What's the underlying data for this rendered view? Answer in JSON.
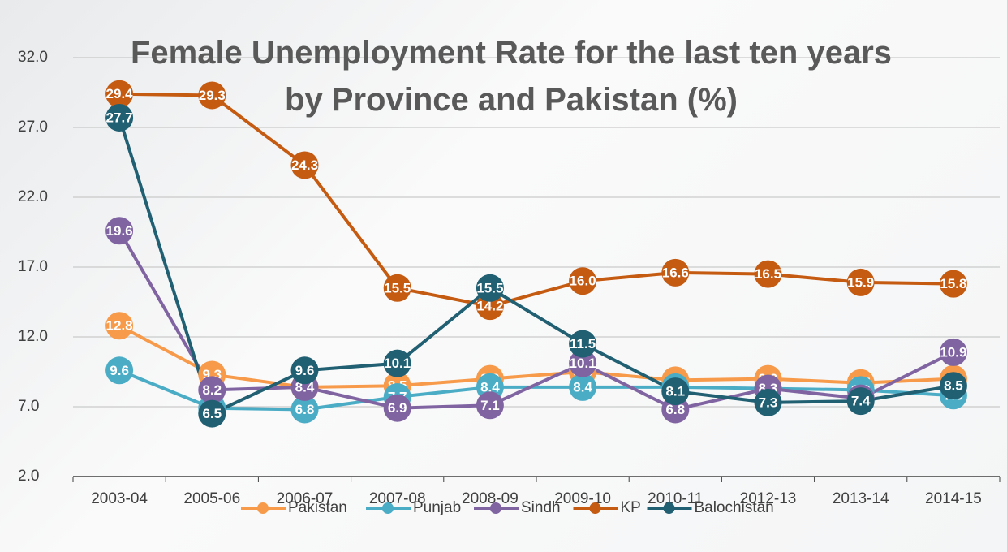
{
  "chart_data": {
    "type": "line",
    "title": "Female Unemployment Rate for the last ten years by Province and Pakistan (%)",
    "categories": [
      "2003-04",
      "2005-06",
      "2006-07",
      "2007-08",
      "2008-09",
      "2009-10",
      "2010-11",
      "2012-13",
      "2013-14",
      "2014-15"
    ],
    "series": [
      {
        "name": "Pakistan",
        "color": "#f79a4a",
        "values": [
          12.8,
          9.3,
          8.4,
          8.5,
          9.0,
          9.5,
          8.9,
          9.0,
          8.7,
          9.0
        ],
        "value_labels": [
          "12.8",
          "9.3",
          "8.4",
          "8.5",
          "9.0",
          "9.5",
          "8.9",
          "9.0",
          "8.7",
          "9.0"
        ]
      },
      {
        "name": "Punjab",
        "color": "#4bacc6",
        "values": [
          9.6,
          6.9,
          6.8,
          7.7,
          8.4,
          8.4,
          8.4,
          8.3,
          8.2,
          7.8
        ],
        "value_labels": [
          "9.6",
          "6.9",
          "6.8",
          "7.7",
          "8.4",
          "8.4",
          "8.4",
          "8.3",
          "8.2",
          "7.8"
        ]
      },
      {
        "name": "Sindh",
        "color": "#8064a2",
        "values": [
          19.6,
          8.2,
          8.4,
          6.9,
          7.1,
          10.1,
          6.8,
          8.3,
          7.6,
          10.9
        ],
        "value_labels": [
          "19.6",
          "8.2",
          "8.4",
          "6.9",
          "7.1",
          "10.1",
          "6.8",
          "8.3",
          "7.6",
          "10.9"
        ]
      },
      {
        "name": "KP",
        "color": "#c55a11",
        "values": [
          29.4,
          29.3,
          24.3,
          15.5,
          14.2,
          16.0,
          16.6,
          16.5,
          15.9,
          15.8
        ],
        "value_labels": [
          "29.4",
          "29.3",
          "24.3",
          "15.5",
          "14.2",
          "16.0",
          "16.6",
          "16.5",
          "15.9",
          "15.8"
        ]
      },
      {
        "name": "Balochistan",
        "color": "#215f73",
        "values": [
          27.7,
          6.5,
          9.6,
          10.1,
          15.5,
          11.5,
          8.1,
          7.3,
          7.4,
          8.5
        ],
        "value_labels": [
          "27.7",
          "6.5",
          "9.6",
          "10.1",
          "15.5",
          "11.5",
          "8.1",
          "7.3",
          "7.4",
          "8.5"
        ]
      }
    ],
    "ylim": [
      2,
      32
    ],
    "yticks": [
      {
        "value": 2,
        "label": "2.0"
      },
      {
        "value": 7,
        "label": "7.0"
      },
      {
        "value": 12,
        "label": "12.0"
      },
      {
        "value": 17,
        "label": "17.0"
      },
      {
        "value": 22,
        "label": "22.0"
      },
      {
        "value": 27,
        "label": "27.0"
      },
      {
        "value": 32,
        "label": "32.0"
      }
    ],
    "grid": true,
    "legend": "bottom"
  }
}
